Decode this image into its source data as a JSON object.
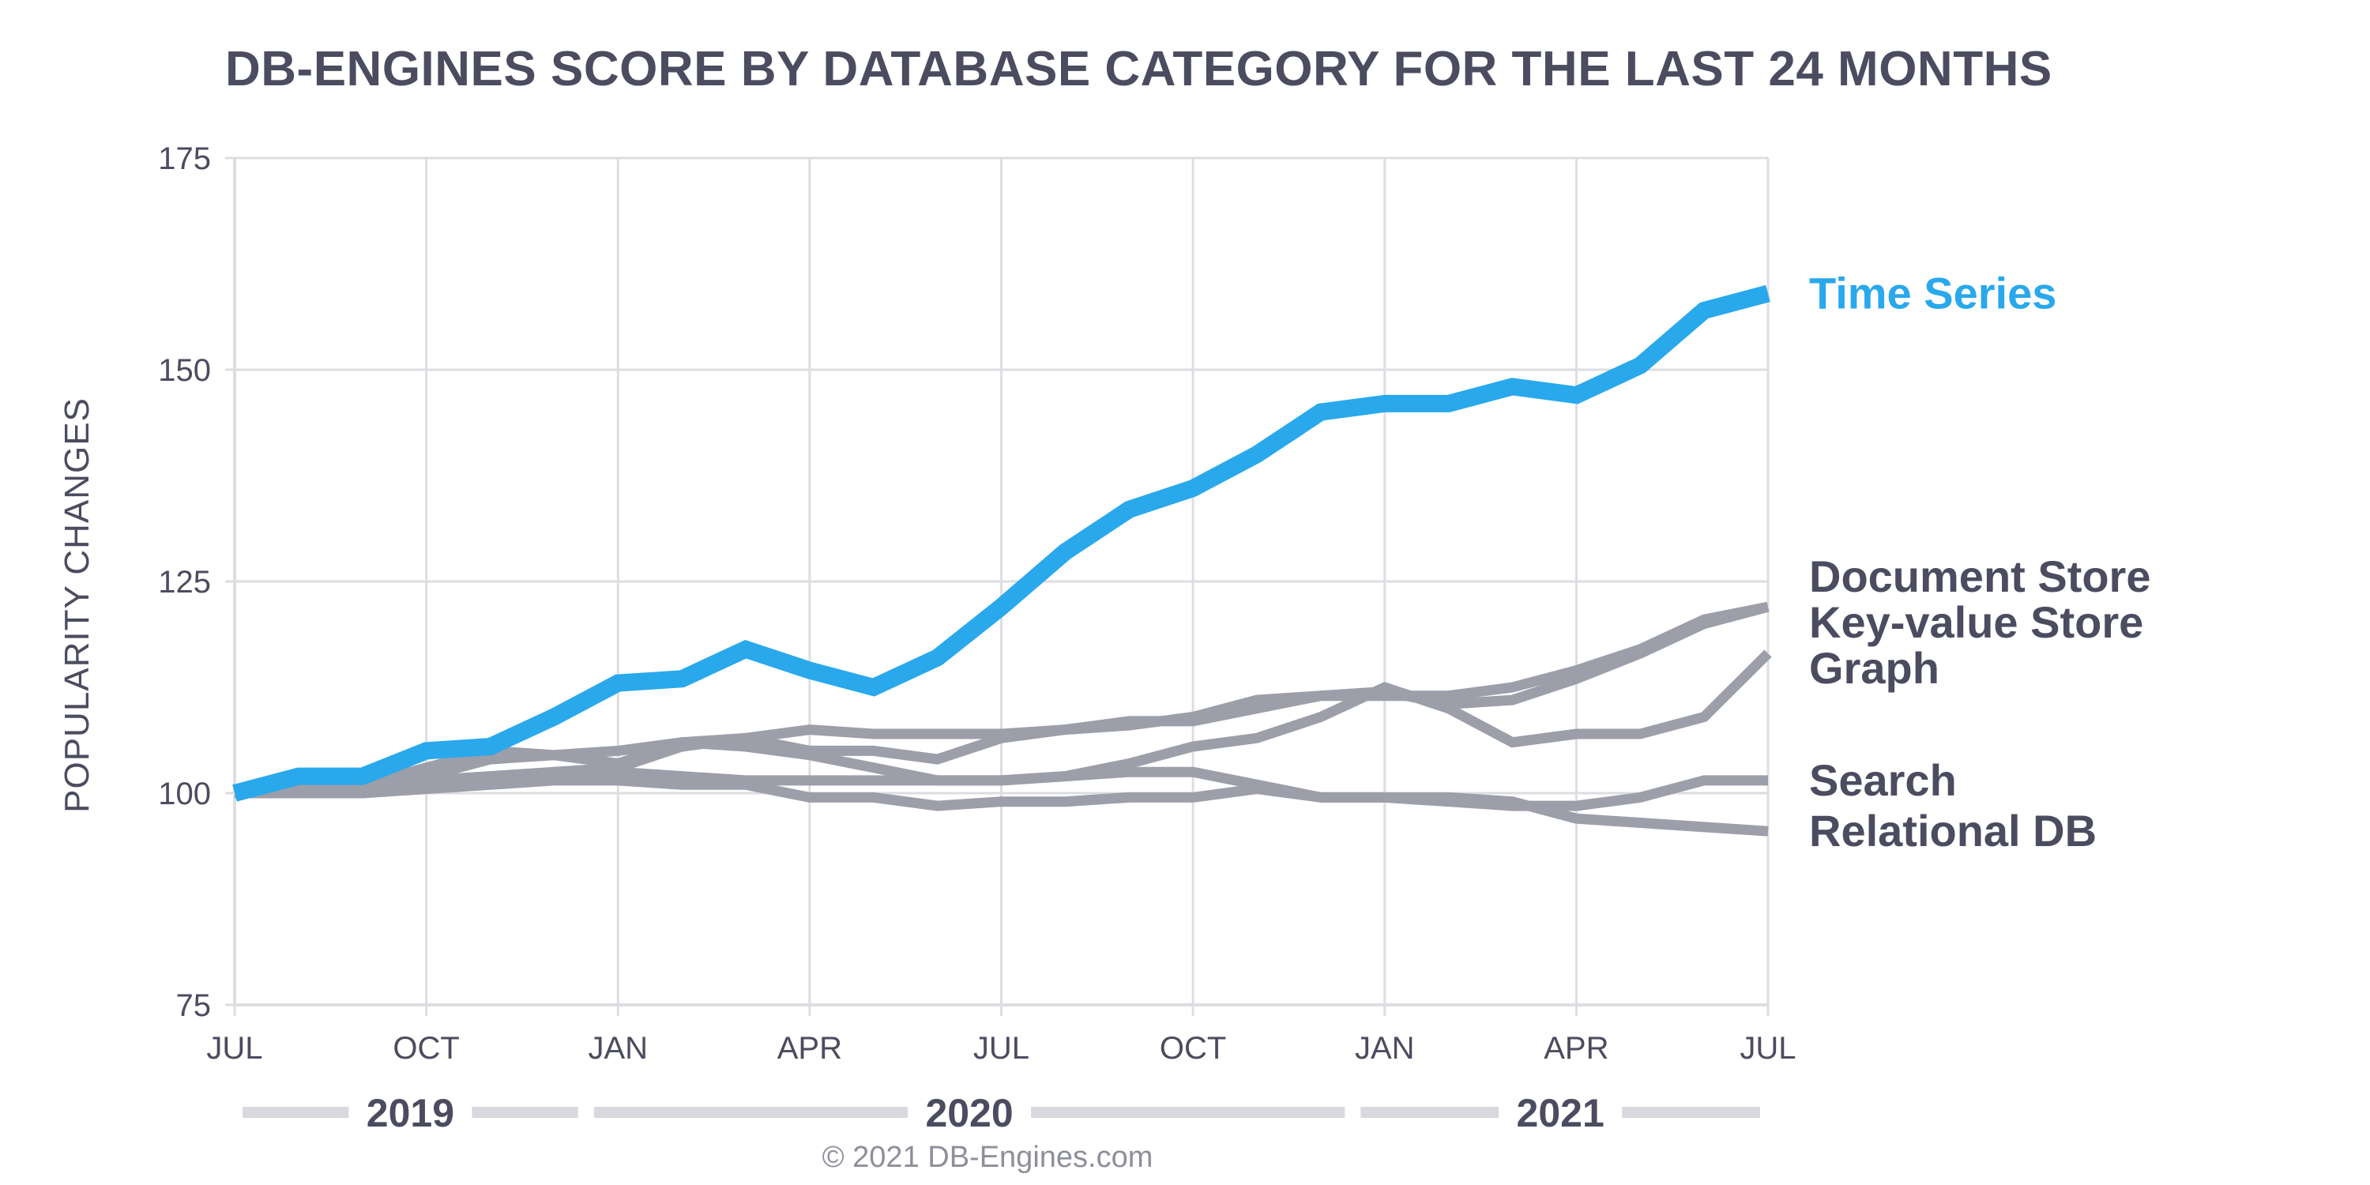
{
  "chart": {
    "title": "DB-ENGINES SCORE BY DATABASE CATEGORY FOR THE LAST 24 MONTHS",
    "copyright": "© 2021 DB-Engines.com"
  },
  "colors": {
    "highlight": "#29a8ec",
    "muted": "#9c9ea9",
    "text": "#4b4c5f",
    "grid": "#dddde2",
    "year_bar": "#d8d9df"
  },
  "chart_data": {
    "type": "line",
    "title": "DB-ENGINES SCORE BY DATABASE CATEGORY FOR THE LAST 24 MONTHS",
    "ylabel": "POPULARITY CHANGES",
    "xlabel": "",
    "ylim": [
      75,
      175
    ],
    "yticks": [
      75,
      100,
      125,
      150,
      175
    ],
    "x": [
      "2019-07",
      "2019-08",
      "2019-09",
      "2019-10",
      "2019-11",
      "2019-12",
      "2020-01",
      "2020-02",
      "2020-03",
      "2020-04",
      "2020-05",
      "2020-06",
      "2020-07",
      "2020-08",
      "2020-09",
      "2020-10",
      "2020-11",
      "2020-12",
      "2021-01",
      "2021-02",
      "2021-03",
      "2021-04",
      "2021-05",
      "2021-06",
      "2021-07"
    ],
    "xticks": [
      {
        "x": "2019-07",
        "label": "JUL"
      },
      {
        "x": "2019-10",
        "label": "OCT"
      },
      {
        "x": "2020-01",
        "label": "JAN"
      },
      {
        "x": "2020-04",
        "label": "APR"
      },
      {
        "x": "2020-07",
        "label": "JUL"
      },
      {
        "x": "2020-10",
        "label": "OCT"
      },
      {
        "x": "2021-01",
        "label": "JAN"
      },
      {
        "x": "2021-04",
        "label": "APR"
      },
      {
        "x": "2021-07",
        "label": "JUL"
      }
    ],
    "years": [
      {
        "label": "2019",
        "from": "2019-07",
        "to": "2019-12"
      },
      {
        "label": "2020",
        "from": "2020-01",
        "to": "2020-12"
      },
      {
        "label": "2021",
        "from": "2021-01",
        "to": "2021-07"
      }
    ],
    "grid": true,
    "series": [
      {
        "name": "Document Store",
        "highlight": false,
        "values": [
          100,
          101,
          100.5,
          102,
          104,
          104.5,
          105,
          106,
          106.5,
          107.5,
          107,
          107,
          107,
          107.5,
          108,
          109,
          111,
          111.5,
          111.5,
          111.5,
          112.5,
          114.5,
          117,
          120.5,
          122
        ]
      },
      {
        "name": "Key-value Store",
        "highlight": false,
        "values": [
          100,
          100.5,
          100,
          101,
          101.5,
          102.5,
          103,
          105.5,
          106.5,
          105,
          105,
          104,
          106.5,
          107.5,
          108.5,
          108.5,
          110,
          111.5,
          112,
          110.5,
          111,
          113.5,
          116.5,
          120,
          122
        ]
      },
      {
        "name": "Graph",
        "highlight": false,
        "values": [
          100,
          100,
          101,
          103,
          105,
          104.5,
          103.5,
          106,
          105.5,
          104.5,
          103,
          101.5,
          101.5,
          102,
          103.5,
          105.5,
          106.5,
          109,
          112.5,
          110,
          106,
          107,
          107,
          109,
          116.5
        ]
      },
      {
        "name": "Search",
        "highlight": false,
        "values": [
          100,
          100.5,
          101,
          101.5,
          102,
          102.5,
          102.5,
          102,
          101.5,
          101.5,
          101.5,
          101.5,
          101.5,
          102,
          102.5,
          102.5,
          101,
          99.5,
          99.5,
          99,
          98.5,
          98.5,
          99.5,
          101.5,
          101.5
        ]
      },
      {
        "name": "Relational DB",
        "highlight": false,
        "values": [
          100,
          100,
          100,
          100.5,
          101,
          101.5,
          101.5,
          101,
          101,
          99.5,
          99.5,
          98.5,
          99,
          99,
          99.5,
          99.5,
          100.5,
          99.5,
          99.5,
          99.5,
          99,
          97,
          96.5,
          96,
          95.5
        ]
      },
      {
        "name": "Time Series",
        "highlight": true,
        "values": [
          100,
          102,
          102,
          105,
          105.5,
          109,
          113,
          113.5,
          117,
          114.5,
          112.5,
          116,
          122,
          128.5,
          133.5,
          136,
          140,
          145,
          146,
          146,
          148,
          147,
          150.5,
          157,
          159
        ]
      }
    ],
    "legend": "right-of-lines"
  }
}
